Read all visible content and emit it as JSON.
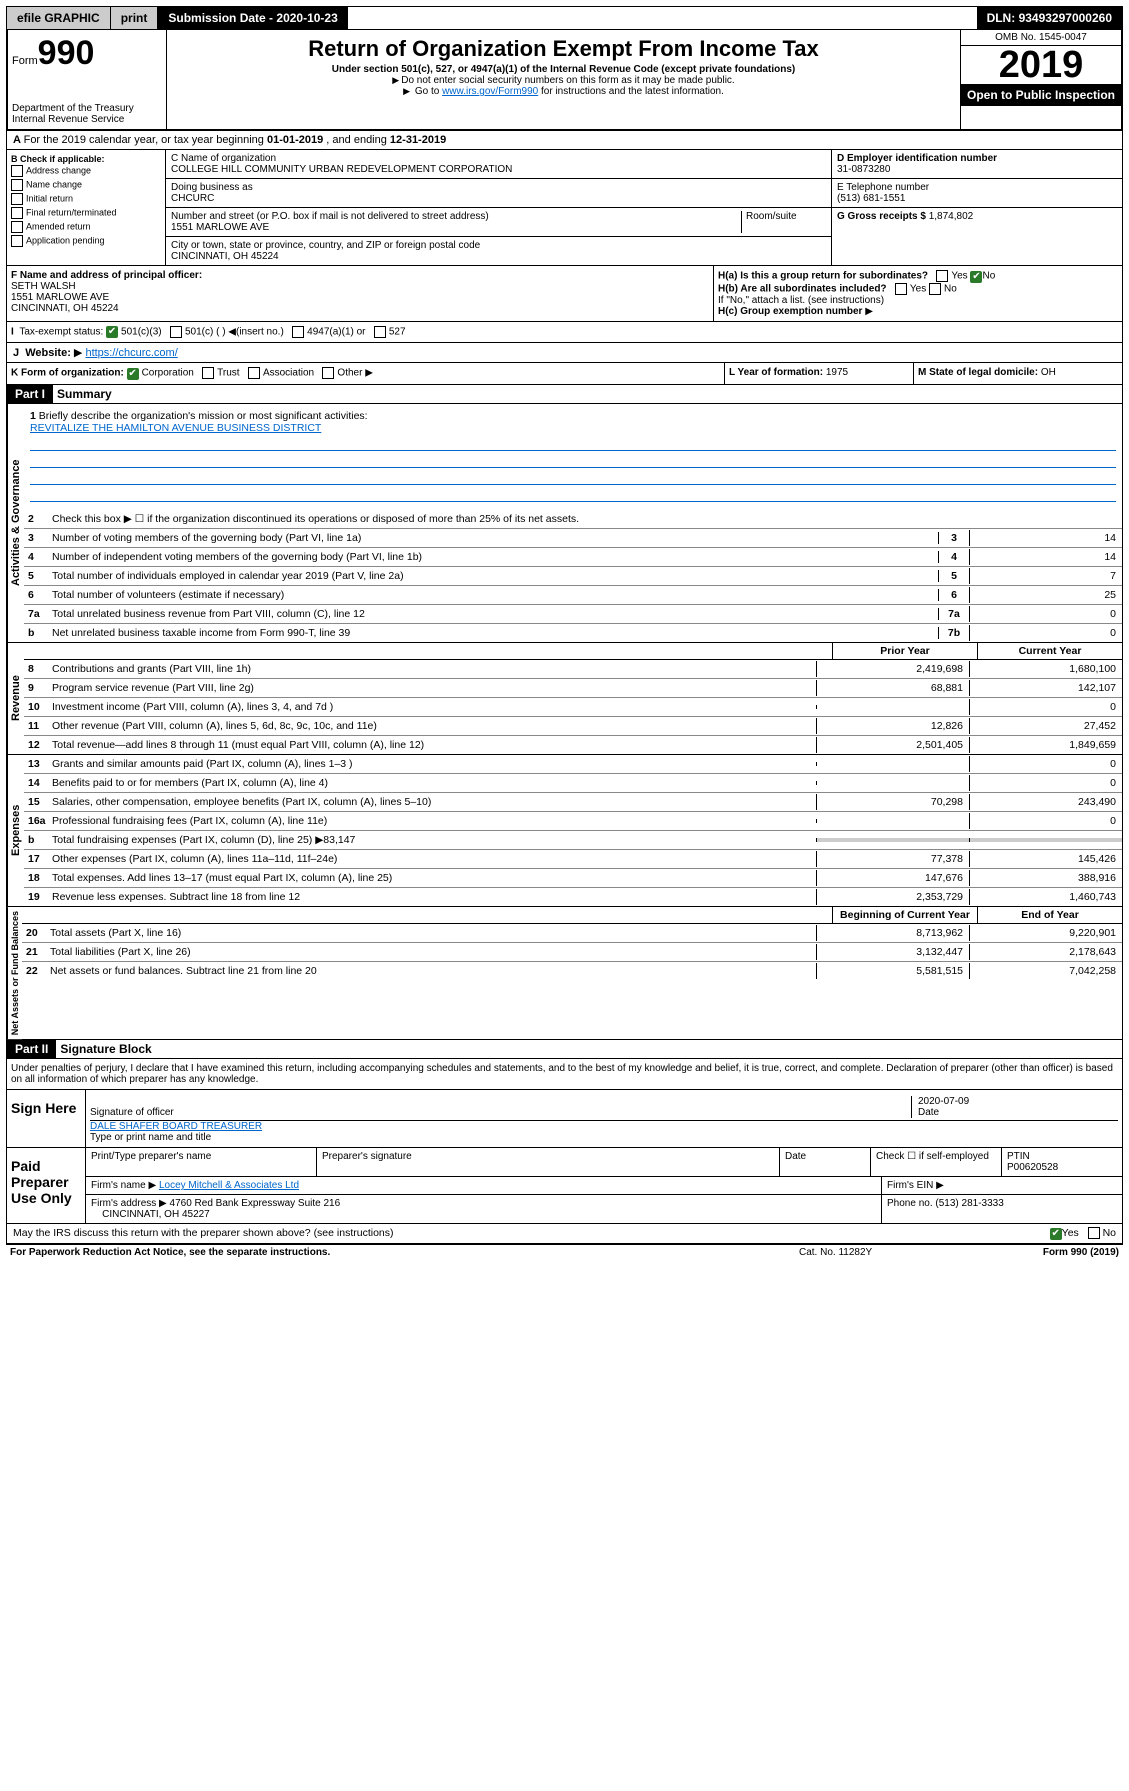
{
  "topbar": {
    "efile": "efile GRAPHIC",
    "print": "print",
    "submission_label": "Submission Date - ",
    "submission_date": "2020-10-23",
    "dln_label": "DLN: ",
    "dln": "93493297000260"
  },
  "header": {
    "form_prefix": "Form",
    "form_number": "990",
    "dept": "Department of the Treasury\nInternal Revenue Service",
    "title": "Return of Organization Exempt From Income Tax",
    "subtitle": "Under section 501(c), 527, or 4947(a)(1) of the Internal Revenue Code (except private foundations)",
    "note1": "Do not enter social security numbers on this form as it may be made public.",
    "note2_prefix": "Go to ",
    "note2_link": "www.irs.gov/Form990",
    "note2_suffix": " for instructions and the latest information.",
    "omb": "OMB No. 1545-0047",
    "year": "2019",
    "open": "Open to Public Inspection"
  },
  "period": {
    "text_prefix": "For the 2019 calendar year, or tax year beginning ",
    "begin": "01-01-2019",
    "mid": " , and ending ",
    "end": "12-31-2019"
  },
  "boxB": {
    "header": "B Check if applicable:",
    "items": [
      "Address change",
      "Name change",
      "Initial return",
      "Final return/terminated",
      "Amended return",
      "Application pending"
    ]
  },
  "boxC": {
    "name_label": "C Name of organization",
    "name": "COLLEGE HILL COMMUNITY URBAN REDEVELOPMENT CORPORATION",
    "dba_label": "Doing business as",
    "dba": "CHCURC",
    "addr_label": "Number and street (or P.O. box if mail is not delivered to street address)",
    "room_label": "Room/suite",
    "addr": "1551 MARLOWE AVE",
    "city_label": "City or town, state or province, country, and ZIP or foreign postal code",
    "city": "CINCINNATI, OH  45224"
  },
  "boxD": {
    "label": "D Employer identification number",
    "value": "31-0873280"
  },
  "boxE": {
    "label": "E Telephone number",
    "value": "(513) 681-1551"
  },
  "boxG": {
    "label": "G Gross receipts $",
    "value": "1,874,802"
  },
  "boxF": {
    "label": "F Name and address of principal officer:",
    "name": "SETH WALSH",
    "addr": "1551 MARLOWE AVE",
    "city": "CINCINNATI, OH  45224"
  },
  "boxH": {
    "a_label": "H(a)  Is this a group return for subordinates?",
    "a_yes": "Yes",
    "a_no": "No",
    "b_label": "H(b)  Are all subordinates included?",
    "b_note": "If \"No,\" attach a list. (see instructions)",
    "c_label": "H(c)  Group exemption number"
  },
  "boxI": {
    "label": "Tax-exempt status:",
    "opt1": "501(c)(3)",
    "opt2": "501(c) (  )",
    "opt2_note": "(insert no.)",
    "opt3": "4947(a)(1) or",
    "opt4": "527"
  },
  "boxJ": {
    "label": "Website:",
    "value": "https://chcurc.com/"
  },
  "boxK": {
    "label": "K Form of organization:",
    "opts": [
      "Corporation",
      "Trust",
      "Association",
      "Other"
    ]
  },
  "boxL": {
    "label": "L Year of formation:",
    "value": "1975"
  },
  "boxM": {
    "label": "M State of legal domicile:",
    "value": "OH"
  },
  "part1": {
    "header": "Part I",
    "title": "Summary",
    "line1_label": "Briefly describe the organization's mission or most significant activities:",
    "line1_value": "REVITALIZE THE HAMILTON AVENUE BUSINESS DISTRICT",
    "line2_label": "Check this box ▶ ☐ if the organization discontinued its operations or disposed of more than 25% of its net assets.",
    "vert_gov": "Activities & Governance",
    "vert_rev": "Revenue",
    "vert_exp": "Expenses",
    "vert_net": "Net Assets or Fund Balances",
    "lines_gov": [
      {
        "n": "3",
        "d": "Number of voting members of the governing body (Part VI, line 1a)",
        "c": "3",
        "v": "14"
      },
      {
        "n": "4",
        "d": "Number of independent voting members of the governing body (Part VI, line 1b)",
        "c": "4",
        "v": "14"
      },
      {
        "n": "5",
        "d": "Total number of individuals employed in calendar year 2019 (Part V, line 2a)",
        "c": "5",
        "v": "7"
      },
      {
        "n": "6",
        "d": "Total number of volunteers (estimate if necessary)",
        "c": "6",
        "v": "25"
      },
      {
        "n": "7a",
        "d": "Total unrelated business revenue from Part VIII, column (C), line 12",
        "c": "7a",
        "v": "0"
      },
      {
        "n": "b",
        "d": "Net unrelated business taxable income from Form 990-T, line 39",
        "c": "7b",
        "v": "0"
      }
    ],
    "prior_header": "Prior Year",
    "current_header": "Current Year",
    "lines_rev": [
      {
        "n": "8",
        "d": "Contributions and grants (Part VIII, line 1h)",
        "p": "2,419,698",
        "c": "1,680,100"
      },
      {
        "n": "9",
        "d": "Program service revenue (Part VIII, line 2g)",
        "p": "68,881",
        "c": "142,107"
      },
      {
        "n": "10",
        "d": "Investment income (Part VIII, column (A), lines 3, 4, and 7d )",
        "p": "",
        "c": "0"
      },
      {
        "n": "11",
        "d": "Other revenue (Part VIII, column (A), lines 5, 6d, 8c, 9c, 10c, and 11e)",
        "p": "12,826",
        "c": "27,452"
      },
      {
        "n": "12",
        "d": "Total revenue—add lines 8 through 11 (must equal Part VIII, column (A), line 12)",
        "p": "2,501,405",
        "c": "1,849,659"
      }
    ],
    "lines_exp": [
      {
        "n": "13",
        "d": "Grants and similar amounts paid (Part IX, column (A), lines 1–3 )",
        "p": "",
        "c": "0"
      },
      {
        "n": "14",
        "d": "Benefits paid to or for members (Part IX, column (A), line 4)",
        "p": "",
        "c": "0"
      },
      {
        "n": "15",
        "d": "Salaries, other compensation, employee benefits (Part IX, column (A), lines 5–10)",
        "p": "70,298",
        "c": "243,490"
      },
      {
        "n": "16a",
        "d": "Professional fundraising fees (Part IX, column (A), line 11e)",
        "p": "",
        "c": "0"
      },
      {
        "n": "b",
        "d": "Total fundraising expenses (Part IX, column (D), line 25) ▶83,147",
        "p": "—",
        "c": "—"
      },
      {
        "n": "17",
        "d": "Other expenses (Part IX, column (A), lines 11a–11d, 11f–24e)",
        "p": "77,378",
        "c": "145,426"
      },
      {
        "n": "18",
        "d": "Total expenses. Add lines 13–17 (must equal Part IX, column (A), line 25)",
        "p": "147,676",
        "c": "388,916"
      },
      {
        "n": "19",
        "d": "Revenue less expenses. Subtract line 18 from line 12",
        "p": "2,353,729",
        "c": "1,460,743"
      }
    ],
    "beg_header": "Beginning of Current Year",
    "end_header": "End of Year",
    "lines_net": [
      {
        "n": "20",
        "d": "Total assets (Part X, line 16)",
        "p": "8,713,962",
        "c": "9,220,901"
      },
      {
        "n": "21",
        "d": "Total liabilities (Part X, line 26)",
        "p": "3,132,447",
        "c": "2,178,643"
      },
      {
        "n": "22",
        "d": "Net assets or fund balances. Subtract line 21 from line 20",
        "p": "5,581,515",
        "c": "7,042,258"
      }
    ]
  },
  "part2": {
    "header": "Part II",
    "title": "Signature Block",
    "declaration": "Under penalties of perjury, I declare that I have examined this return, including accompanying schedules and statements, and to the best of my knowledge and belief, it is true, correct, and complete. Declaration of preparer (other than officer) is based on all information of which preparer has any knowledge.",
    "sign_here": "Sign Here",
    "sig_officer": "Signature of officer",
    "date_label": "Date",
    "date": "2020-07-09",
    "officer_name": "DALE SHAFER  BOARD TREASURER",
    "name_title_label": "Type or print name and title",
    "paid": "Paid Preparer Use Only",
    "prep_name_label": "Print/Type preparer's name",
    "prep_sig_label": "Preparer's signature",
    "check_self": "Check ☐ if self-employed",
    "ptin_label": "PTIN",
    "ptin": "P00620528",
    "firm_name_label": "Firm's name",
    "firm_name": "Locey Mitchell & Associates Ltd",
    "firm_ein_label": "Firm's EIN",
    "firm_addr_label": "Firm's address",
    "firm_addr": "4760 Red Bank Expressway Suite 216",
    "firm_city": "CINCINNATI, OH  45227",
    "phone_label": "Phone no.",
    "phone": "(513) 281-3333",
    "discuss": "May the IRS discuss this return with the preparer shown above? (see instructions)",
    "yes": "Yes",
    "no": "No"
  },
  "footer": {
    "notice": "For Paperwork Reduction Act Notice, see the separate instructions.",
    "cat": "Cat. No. 11282Y",
    "form": "Form 990 (2019)"
  }
}
